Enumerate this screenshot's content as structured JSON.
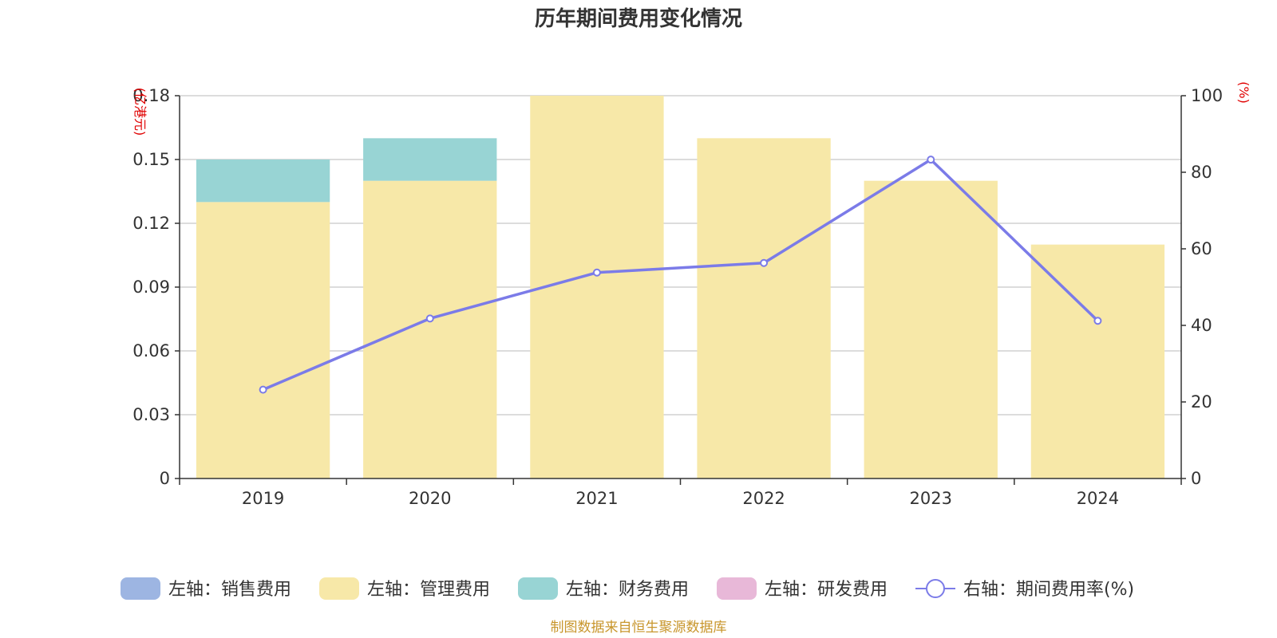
{
  "chart_data": {
    "type": "bar",
    "title": "历年期间费用变化情况",
    "categories": [
      "2019",
      "2020",
      "2021",
      "2022",
      "2023",
      "2024"
    ],
    "left_axis": {
      "unit": "(亿港元)",
      "ylim": [
        0,
        0.18
      ],
      "ticks": [
        "0",
        "0.03",
        "0.06",
        "0.09",
        "0.12",
        "0.15",
        "0.18"
      ],
      "tick_values": [
        0,
        0.03,
        0.06,
        0.09,
        0.12,
        0.15,
        0.18
      ]
    },
    "right_axis": {
      "unit": "(%)",
      "ylim": [
        0,
        100
      ],
      "ticks": [
        "0",
        "20",
        "40",
        "60",
        "80",
        "100"
      ],
      "tick_values": [
        0,
        20,
        40,
        60,
        80,
        100
      ]
    },
    "series": [
      {
        "name": "左轴：销售费用",
        "axis": "left",
        "kind": "bar",
        "color": "#9db5e2",
        "values": [
          0,
          0,
          0,
          0,
          0,
          0
        ]
      },
      {
        "name": "左轴：管理费用",
        "axis": "left",
        "kind": "bar",
        "color": "#f7e8a8",
        "values": [
          0.13,
          0.14,
          0.18,
          0.16,
          0.14,
          0.11
        ]
      },
      {
        "name": "左轴：财务费用",
        "axis": "left",
        "kind": "bar",
        "color": "#98d4d4",
        "values": [
          0.02,
          0.02,
          0,
          0,
          0,
          0
        ]
      },
      {
        "name": "左轴：研发费用",
        "axis": "left",
        "kind": "bar",
        "color": "#e8b8d8",
        "values": [
          0,
          0,
          0,
          0,
          0,
          0
        ]
      },
      {
        "name": "右轴：期间费用率(%)",
        "axis": "right",
        "kind": "line",
        "color": "#7b7be8",
        "values": [
          23.2,
          41.8,
          53.8,
          56.3,
          83.3,
          41.2
        ]
      }
    ],
    "source": "制图数据来自恒生聚源数据库"
  }
}
